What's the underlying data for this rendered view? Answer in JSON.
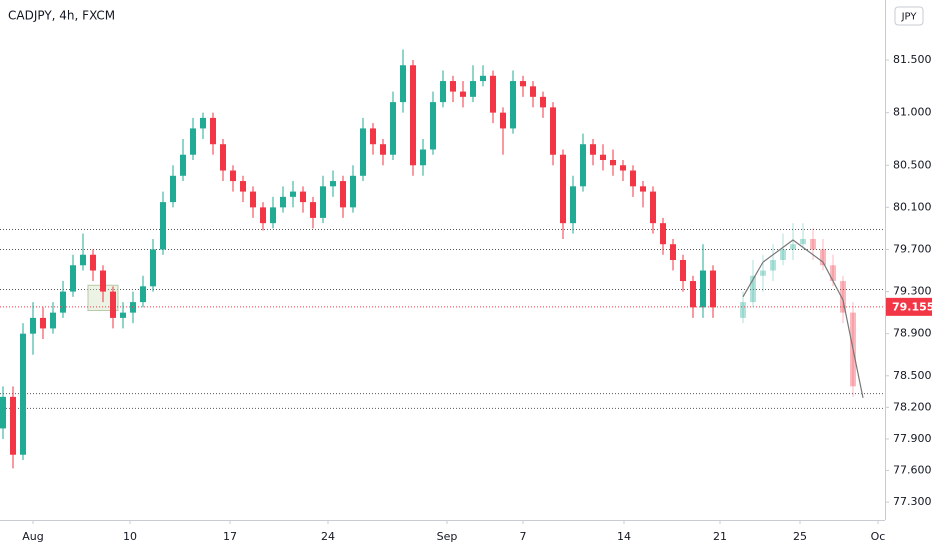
{
  "chart_data": {
    "type": "candlestick",
    "title": "CADJPY, 4h, FXCM",
    "currency": "JPY",
    "up_color": "#22ab94",
    "down_color": "#f23645",
    "open": [
      78.0,
      78.3,
      77.75,
      78.9,
      79.05,
      78.95,
      79.1,
      79.3,
      79.55,
      79.65,
      79.5,
      79.3,
      79.05,
      79.1,
      79.2,
      79.35,
      79.7,
      80.15,
      80.4,
      80.6,
      80.85,
      80.95,
      80.7,
      80.45,
      80.35,
      80.25,
      80.1,
      79.95,
      80.1,
      80.2,
      80.25,
      80.15,
      80.0,
      80.3,
      80.35,
      80.1,
      80.4,
      80.85,
      80.7,
      80.6,
      81.1,
      81.45,
      80.5,
      80.65,
      81.1,
      81.3,
      81.2,
      81.15,
      81.3,
      81.35,
      81.0,
      80.85,
      81.3,
      81.25,
      81.15,
      81.05,
      80.6,
      79.95,
      80.3,
      80.7,
      80.6,
      80.55,
      80.5,
      80.45,
      80.3,
      80.25,
      79.95,
      79.75,
      79.6,
      79.4,
      79.15,
      79.5
    ],
    "high": [
      78.4,
      78.4,
      79.0,
      79.2,
      79.15,
      79.2,
      79.4,
      79.65,
      79.85,
      79.7,
      79.55,
      79.35,
      79.2,
      79.3,
      79.45,
      79.8,
      80.25,
      80.5,
      80.75,
      80.95,
      81.0,
      81.0,
      80.75,
      80.5,
      80.4,
      80.3,
      80.15,
      80.2,
      80.3,
      80.35,
      80.3,
      80.2,
      80.4,
      80.45,
      80.4,
      80.5,
      80.95,
      80.9,
      80.75,
      81.2,
      81.6,
      81.5,
      80.75,
      81.2,
      81.4,
      81.35,
      81.3,
      81.45,
      81.45,
      81.4,
      81.05,
      81.4,
      81.35,
      81.3,
      81.2,
      81.1,
      80.65,
      80.4,
      80.8,
      80.75,
      80.7,
      80.65,
      80.55,
      80.5,
      80.35,
      80.3,
      80.0,
      79.8,
      79.65,
      79.45,
      79.75,
      79.55
    ],
    "low": [
      77.9,
      77.62,
      77.7,
      78.7,
      78.85,
      78.9,
      79.05,
      79.25,
      79.5,
      79.4,
      79.2,
      78.95,
      78.95,
      79.0,
      79.15,
      79.3,
      79.65,
      80.1,
      80.35,
      80.55,
      80.75,
      80.6,
      80.35,
      80.25,
      80.15,
      80.0,
      79.88,
      79.9,
      80.05,
      80.1,
      80.05,
      79.9,
      79.95,
      80.2,
      80.0,
      80.05,
      80.35,
      80.6,
      80.5,
      80.55,
      81.0,
      80.4,
      80.4,
      80.6,
      81.05,
      81.1,
      81.05,
      81.1,
      81.25,
      80.9,
      80.6,
      80.8,
      81.15,
      81.05,
      80.95,
      80.5,
      79.8,
      79.85,
      80.25,
      80.5,
      80.45,
      80.4,
      80.35,
      80.2,
      80.1,
      79.85,
      79.65,
      79.5,
      79.3,
      79.05,
      79.05,
      79.05
    ],
    "close": [
      78.3,
      77.75,
      78.9,
      79.05,
      78.95,
      79.1,
      79.3,
      79.55,
      79.65,
      79.5,
      79.3,
      79.05,
      79.1,
      79.2,
      79.35,
      79.7,
      80.15,
      80.4,
      80.6,
      80.85,
      80.95,
      80.7,
      80.45,
      80.35,
      80.25,
      80.1,
      79.95,
      80.1,
      80.2,
      80.25,
      80.15,
      80.0,
      80.3,
      80.35,
      80.1,
      80.4,
      80.85,
      80.7,
      80.6,
      81.1,
      81.45,
      80.5,
      80.65,
      81.1,
      81.3,
      81.2,
      81.15,
      81.3,
      81.35,
      81.0,
      80.85,
      81.3,
      81.25,
      81.15,
      81.05,
      80.6,
      79.95,
      80.3,
      80.7,
      80.6,
      80.55,
      80.5,
      80.45,
      80.3,
      80.25,
      79.95,
      79.75,
      79.6,
      79.4,
      79.15,
      79.5,
      79.15
    ],
    "projection": {
      "x": [
        74,
        75,
        76,
        77,
        78,
        79,
        80,
        81,
        82,
        83,
        84,
        85
      ],
      "open": [
        79.05,
        79.2,
        79.45,
        79.5,
        79.6,
        79.7,
        79.75,
        79.8,
        79.7,
        79.55,
        79.4,
        79.1
      ],
      "high": [
        79.3,
        79.6,
        79.65,
        79.75,
        79.85,
        79.95,
        79.95,
        79.9,
        79.8,
        79.65,
        79.45,
        79.2
      ],
      "low": [
        79.0,
        79.15,
        79.3,
        79.4,
        79.55,
        79.6,
        79.7,
        79.6,
        79.5,
        79.35,
        79.0,
        78.3
      ],
      "close": [
        79.2,
        79.45,
        79.5,
        79.6,
        79.7,
        79.75,
        79.8,
        79.7,
        79.55,
        79.4,
        79.1,
        78.4
      ]
    },
    "curve": {
      "x": [
        74,
        76,
        79,
        82,
        84,
        86
      ],
      "y": [
        79.25,
        79.58,
        79.79,
        79.58,
        79.22,
        78.29
      ]
    },
    "levels": [
      79.89,
      79.7,
      79.32,
      78.33,
      78.19
    ],
    "highlight_box": {
      "x": [
        8.5,
        11.5
      ],
      "y": [
        79.12,
        79.36
      ]
    },
    "last_price": 79.155,
    "xlim": [
      -0.3,
      88.2
    ],
    "ylim": [
      77.13,
      82.07
    ],
    "xticks": [
      {
        "value": 3,
        "label": "Aug"
      },
      {
        "value": 12.7,
        "label": "10"
      },
      {
        "value": 22.7,
        "label": "17"
      },
      {
        "value": 32.5,
        "label": "24"
      },
      {
        "value": 44.4,
        "label": "Sep"
      },
      {
        "value": 52,
        "label": "7"
      },
      {
        "value": 62.1,
        "label": "14"
      },
      {
        "value": 71.7,
        "label": "21"
      },
      {
        "value": 79.7,
        "label": "25"
      },
      {
        "value": 87.5,
        "label": "Oc"
      }
    ],
    "yticks": [
      {
        "value": 81.5,
        "label": "81.500"
      },
      {
        "value": 81,
        "label": "81.000"
      },
      {
        "value": 80.5,
        "label": "80.500"
      },
      {
        "value": 80.1,
        "label": "80.100"
      },
      {
        "value": 79.7,
        "label": "79.700"
      },
      {
        "value": 79.3,
        "label": "79.300"
      },
      {
        "value": 78.9,
        "label": "78.900"
      },
      {
        "value": 78.5,
        "label": "78.500"
      },
      {
        "value": 78.2,
        "label": "78.200"
      },
      {
        "value": 77.9,
        "label": "77.900"
      },
      {
        "value": 77.6,
        "label": "77.600"
      },
      {
        "value": 77.3,
        "label": "77.300"
      }
    ]
  }
}
